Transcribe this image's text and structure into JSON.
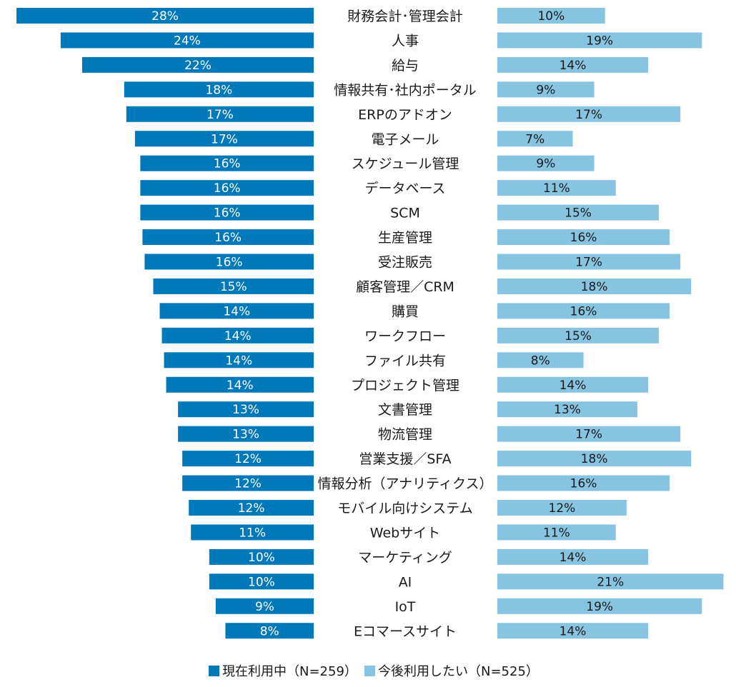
{
  "chart_data": {
    "type": "bar",
    "orientation": "horizontal-butterfly",
    "categories": [
      "財務会計･管理会計",
      "人事",
      "給与",
      "情報共有･社内ポータル",
      "ERPのアドオン",
      "電子メール",
      "スケジュール管理",
      "データベース",
      "SCM",
      "生産管理",
      "受注販売",
      "顧客管理／CRM",
      "購買",
      "ワークフロー",
      "ファイル共有",
      "プロジェクト管理",
      "文書管理",
      "物流管理",
      "営業支援／SFA",
      "情報分析（アナリティクス）",
      "モバイル向けシステム",
      "Webサイト",
      "マーケティング",
      "AI",
      "IoT",
      "Eコマースサイト"
    ],
    "series": [
      {
        "name": "現在利用中（N=259）",
        "color": "#0079bb",
        "value_labels": [
          "28%",
          "24%",
          "22%",
          "18%",
          "17%",
          "17%",
          "16%",
          "16%",
          "16%",
          "16%",
          "16%",
          "15%",
          "14%",
          "14%",
          "14%",
          "14%",
          "13%",
          "13%",
          "12%",
          "12%",
          "12%",
          "11%",
          "10%",
          "10%",
          "9%",
          "8%"
        ],
        "values": [
          27.6,
          23.5,
          21.5,
          17.6,
          17.4,
          16.6,
          16.1,
          16.1,
          16.1,
          15.9,
          15.7,
          14.9,
          14.3,
          14.1,
          13.9,
          13.7,
          12.6,
          12.6,
          12.2,
          12.2,
          11.6,
          11.4,
          9.7,
          9.7,
          9.1,
          8.2
        ]
      },
      {
        "name": "今後利用したい（N=525）",
        "color": "#86c4e2",
        "value_labels": [
          "10%",
          "19%",
          "14%",
          "9%",
          "17%",
          "7%",
          "9%",
          "11%",
          "15%",
          "16%",
          "17%",
          "18%",
          "16%",
          "15%",
          "8%",
          "14%",
          "13%",
          "17%",
          "18%",
          "16%",
          "12%",
          "11%",
          "14%",
          "21%",
          "19%",
          "14%"
        ],
        "values": [
          10.0,
          19.0,
          14.0,
          9.0,
          17.0,
          7.0,
          9.0,
          11.0,
          15.0,
          16.0,
          17.0,
          18.0,
          16.0,
          15.0,
          8.0,
          14.0,
          13.0,
          17.0,
          18.0,
          16.0,
          12.0,
          11.0,
          14.0,
          21.0,
          19.0,
          14.0
        ]
      }
    ],
    "legend_position": "bottom",
    "grid": false
  }
}
